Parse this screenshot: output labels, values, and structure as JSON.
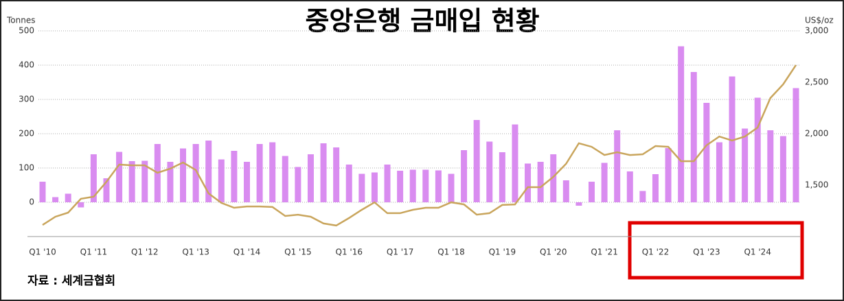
{
  "chart_data": {
    "type": "bar_line",
    "title": "중앙은행 금매입 현황",
    "source": "자료 : 세계금협회",
    "ylabel": "Tonnes",
    "y2label": "US$/oz",
    "categories": [
      "Q1 '10",
      null,
      null,
      null,
      "Q1 '11",
      null,
      null,
      null,
      "Q1 '12",
      null,
      null,
      null,
      "Q1 '13",
      null,
      null,
      null,
      "Q1 '14",
      null,
      null,
      null,
      "Q1 '15",
      null,
      null,
      null,
      "Q1 '16",
      null,
      null,
      null,
      "Q1 '17",
      null,
      null,
      null,
      "Q1 '18",
      null,
      null,
      null,
      "Q1 '19",
      null,
      null,
      null,
      "Q1 '20",
      null,
      null,
      null,
      "Q1 '21",
      null,
      null,
      null,
      "Q1 '22",
      null,
      null,
      null,
      "Q1 '23",
      null,
      null,
      null,
      "Q1 '24",
      null,
      null,
      null
    ],
    "series": [
      {
        "type": "bar",
        "color": "#d98cf0",
        "values": [
          60,
          15,
          25,
          -15,
          140,
          70,
          147,
          120,
          121,
          170,
          118,
          157,
          170,
          180,
          125,
          150,
          118,
          170,
          175,
          135,
          103,
          140,
          172,
          160,
          110,
          83,
          87,
          110,
          92,
          95,
          95,
          93,
          83,
          152,
          240,
          177,
          146,
          227,
          113,
          118,
          140,
          64,
          -10,
          60,
          115,
          210,
          90,
          33,
          82,
          158,
          455,
          380,
          290,
          175,
          367,
          215,
          305,
          210,
          193,
          333
        ]
      },
      {
        "type": "line",
        "axis": "y2",
        "color": "#c9a55c",
        "values": [
          1113,
          1193,
          1233,
          1367,
          1387,
          1533,
          1700,
          1693,
          1693,
          1620,
          1660,
          1720,
          1647,
          1420,
          1327,
          1280,
          1293,
          1293,
          1287,
          1200,
          1213,
          1193,
          1127,
          1107,
          1180,
          1260,
          1333,
          1227,
          1227,
          1260,
          1280,
          1280,
          1333,
          1313,
          1213,
          1227,
          1307,
          1313,
          1480,
          1480,
          1580,
          1707,
          1907,
          1873,
          1793,
          1820,
          1793,
          1800,
          1880,
          1873,
          1733,
          1733,
          1887,
          1973,
          1933,
          1973,
          2060,
          2347,
          2480,
          2667
        ]
      }
    ],
    "ylim": [
      -100,
      500
    ],
    "yticks": [
      0,
      100,
      200,
      300,
      400,
      500
    ],
    "y2lim": [
      1000,
      3000
    ],
    "y2ticks": [
      {
        "value": 1500,
        "label": "1,500"
      },
      {
        "value": 2000,
        "label": "2,000"
      },
      {
        "value": 2500,
        "label": "2,500"
      },
      {
        "value": 3000,
        "label": "3,000"
      }
    ],
    "grid": true
  }
}
